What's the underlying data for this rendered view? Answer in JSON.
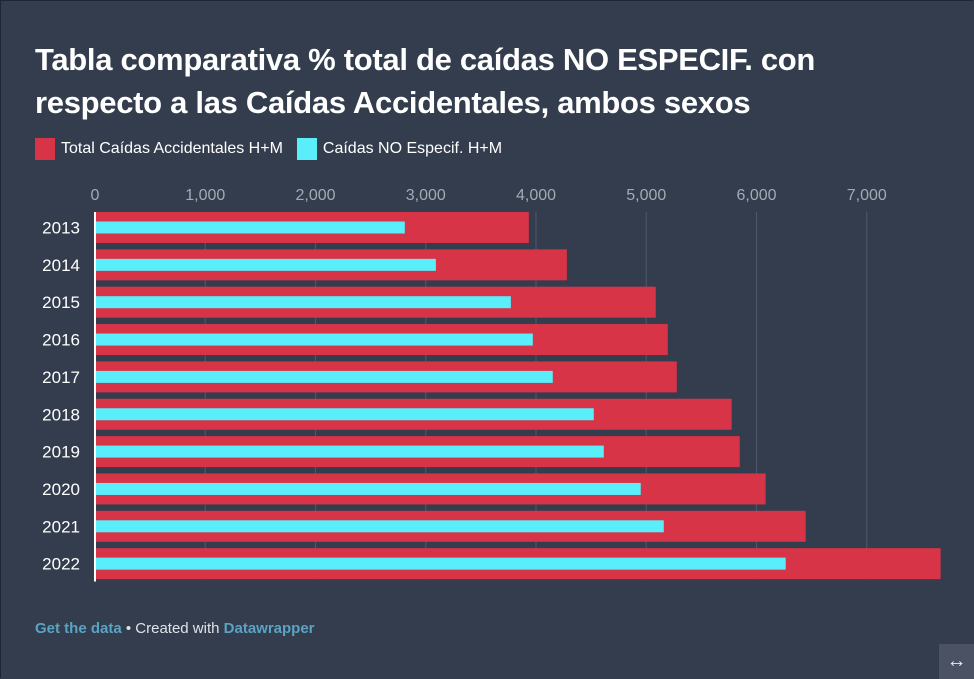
{
  "title": "Tabla comparativa % total de caídas NO ESPECIF. con respecto a las Caídas Accidentales, ambos sexos",
  "legend": [
    {
      "label": "Total Caídas Accidentales H+M",
      "color": "#d73447"
    },
    {
      "label": "Caídas NO Especif. H+M",
      "color": "#59eefa"
    }
  ],
  "footer": {
    "get_data": "Get the data",
    "separator": " • Created with ",
    "datawrapper": "Datawrapper"
  },
  "resize_icon": "↔",
  "chart_data": {
    "type": "bar",
    "orientation": "horizontal",
    "title": "Tabla comparativa % total de caídas NO ESPECIF. con respecto a las Caídas Accidentales, ambos sexos",
    "xlabel": "",
    "ylabel": "",
    "categories": [
      "2013",
      "2014",
      "2015",
      "2016",
      "2017",
      "2018",
      "2019",
      "2020",
      "2021",
      "2022"
    ],
    "series": [
      {
        "name": "Total Caídas Accidentales H+M",
        "color": "#d73447",
        "values": [
          3935,
          4280,
          5086,
          5195,
          5277,
          5775,
          5848,
          6083,
          6446,
          7670
        ]
      },
      {
        "name": "Caídas NO Especif. H+M",
        "color": "#59eefa",
        "values": [
          2810,
          3092,
          3772,
          3971,
          4152,
          4524,
          4615,
          4950,
          5159,
          6265
        ]
      }
    ],
    "xlim": [
      0,
      7700
    ],
    "xticks": [
      0,
      1000,
      2000,
      3000,
      4000,
      5000,
      6000,
      7000
    ],
    "xtick_labels": [
      "0",
      "1,000",
      "2,000",
      "3,000",
      "4,000",
      "5,000",
      "6,000",
      "7,000"
    ],
    "grid": true,
    "legend_position": "top-left",
    "overlay": true
  }
}
